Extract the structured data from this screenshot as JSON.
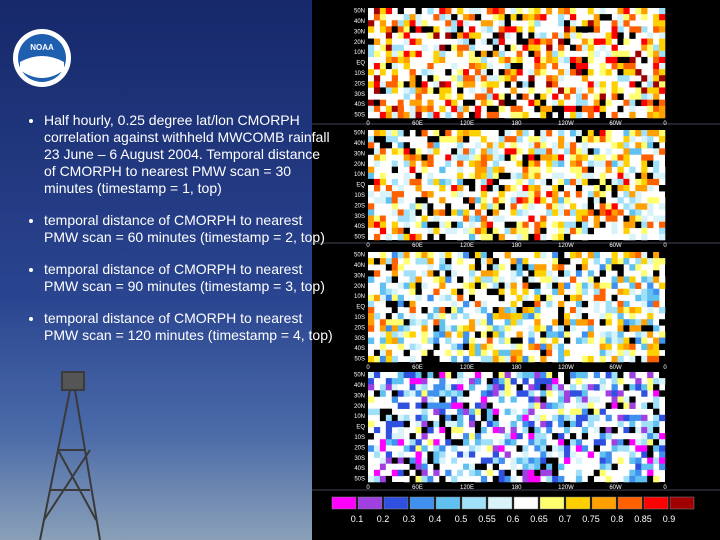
{
  "logo": {
    "text": "NOAA"
  },
  "bullets": [
    "Half hourly, 0.25 degree lat/lon CMORPH correlation against withheld MWCOMB rainfall 23 June – 6 August 2004.  Temporal distance of CMORPH to nearest PMW scan = 30 minutes (timestamp = 1, top)",
    "temporal distance of CMORPH to nearest PMW scan = 60 minutes (timestamp = 2, top)",
    "temporal distance of CMORPH to nearest PMW scan = 90 minutes (timestamp = 3, top)",
    "temporal distance of CMORPH to nearest PMW scan = 120 minutes (timestamp = 4, top)"
  ],
  "map_axes": {
    "lat_labels": [
      "50N",
      "40N",
      "30N",
      "20N",
      "10N",
      "EQ",
      "10S",
      "20S",
      "30S",
      "40S",
      "50S"
    ],
    "lon_labels": [
      "0",
      "60E",
      "120E",
      "180",
      "120W",
      "60W",
      "0"
    ]
  },
  "colorbar": {
    "labels": [
      "0.1",
      "0.2",
      "0.3",
      "0.4",
      "0.5",
      "0.55",
      "0.6",
      "0.65",
      "0.7",
      "0.75",
      "0.8",
      "0.85",
      "0.9"
    ],
    "colors": [
      "#ff00ff",
      "#a040e0",
      "#3050e0",
      "#4090f0",
      "#60c0f0",
      "#a0e0f8",
      "#d8f4fa",
      "#ffffff",
      "#ffff70",
      "#ffd000",
      "#ffa000",
      "#ff6000",
      "#ff0000",
      "#a00000"
    ]
  }
}
